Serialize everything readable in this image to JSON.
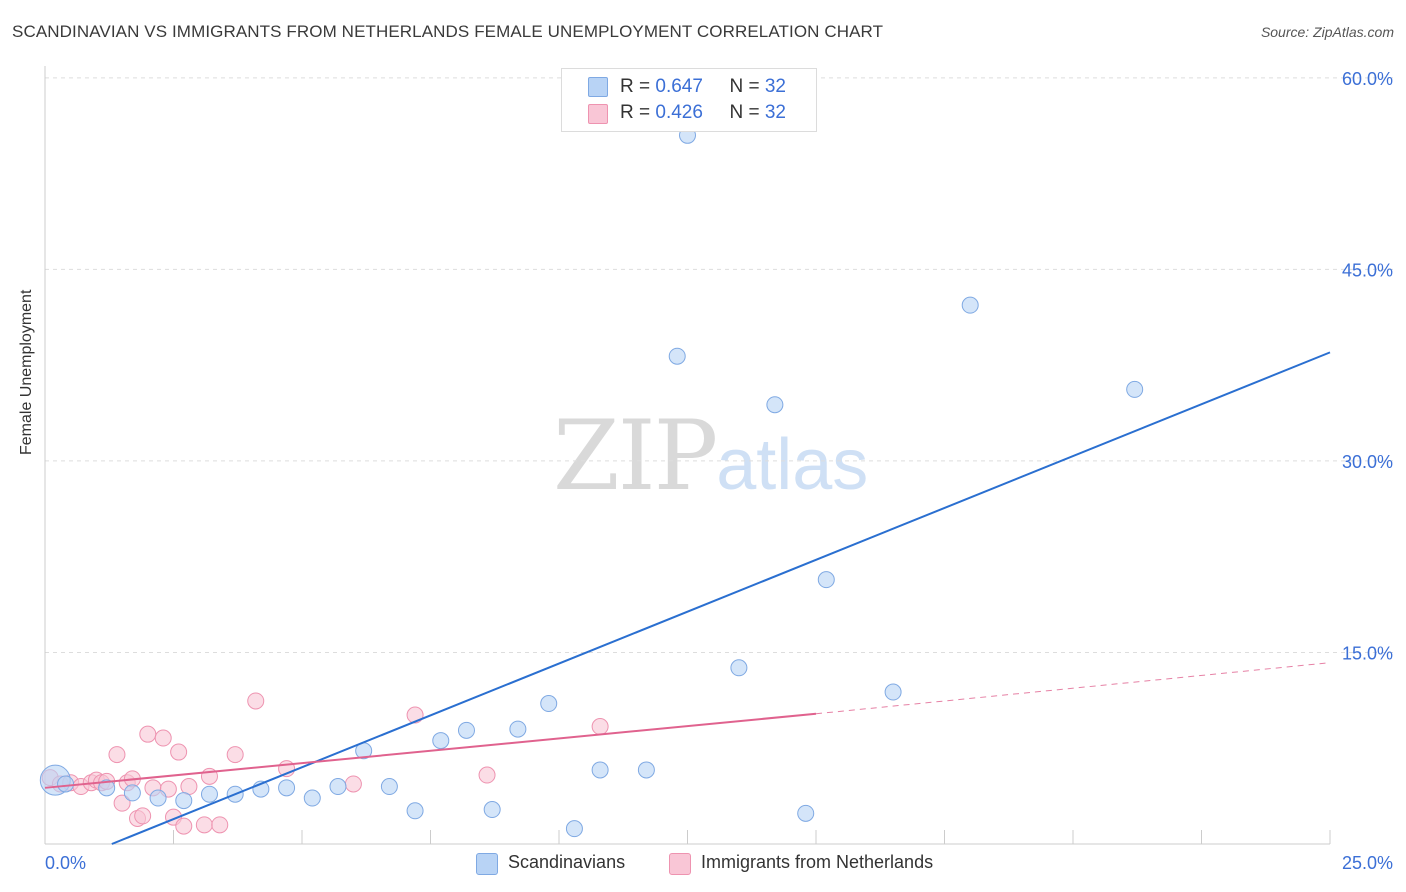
{
  "header": {
    "title": "SCANDINAVIAN VS IMMIGRANTS FROM NETHERLANDS FEMALE UNEMPLOYMENT CORRELATION CHART",
    "source": "Source: ZipAtlas.com"
  },
  "watermark": {
    "zip": "ZIP",
    "atlas": "atlas"
  },
  "legend": {
    "series1": {
      "r_label": "R = ",
      "r_value": "0.647",
      "n_label": "N = ",
      "n_value": "32"
    },
    "series2": {
      "r_label": "R = ",
      "r_value": "0.426",
      "n_label": "N = ",
      "n_value": "32"
    }
  },
  "colors": {
    "blue_fill": "#b8d3f5",
    "blue_stroke": "#7fa9e3",
    "blue_line": "#2a6fd0",
    "pink_fill": "#f9c6d6",
    "pink_stroke": "#ee93b0",
    "pink_line": "#e0628e",
    "tick_text": "#3b6fd6",
    "grid": "#dddddd"
  },
  "chart_data": {
    "type": "scatter",
    "title": "SCANDINAVIAN VS IMMIGRANTS FROM NETHERLANDS FEMALE UNEMPLOYMENT CORRELATION CHART",
    "xlabel": "",
    "ylabel": "Female Unemployment",
    "xlim": [
      0,
      25
    ],
    "ylim": [
      0,
      62
    ],
    "x_tick_labels": [
      "0.0%",
      "25.0%"
    ],
    "y_ticks": [
      15,
      30,
      45,
      60
    ],
    "y_tick_labels": [
      "15.0%",
      "30.0%",
      "45.0%",
      "60.0%"
    ],
    "series": [
      {
        "name": "Scandinavians",
        "color": "blue",
        "points": [
          [
            0.2,
            5.0
          ],
          [
            1.2,
            4.4
          ],
          [
            1.7,
            4.0
          ],
          [
            2.2,
            3.6
          ],
          [
            2.7,
            3.4
          ],
          [
            3.2,
            3.9
          ],
          [
            3.7,
            3.9
          ],
          [
            4.2,
            4.3
          ],
          [
            4.7,
            4.4
          ],
          [
            5.2,
            3.6
          ],
          [
            5.7,
            4.5
          ],
          [
            6.2,
            7.3
          ],
          [
            6.7,
            4.5
          ],
          [
            7.2,
            2.6
          ],
          [
            7.7,
            8.1
          ],
          [
            8.2,
            8.9
          ],
          [
            8.7,
            2.7
          ],
          [
            9.2,
            9.0
          ],
          [
            9.8,
            11.0
          ],
          [
            10.3,
            1.2
          ],
          [
            10.8,
            5.8
          ],
          [
            11.7,
            5.8
          ],
          [
            12.3,
            38.2
          ],
          [
            12.5,
            55.5
          ],
          [
            13.5,
            13.8
          ],
          [
            14.2,
            34.4
          ],
          [
            14.8,
            2.4
          ],
          [
            15.2,
            20.7
          ],
          [
            16.5,
            11.9
          ],
          [
            18.0,
            42.2
          ],
          [
            21.2,
            35.6
          ],
          [
            0.4,
            4.7
          ]
        ],
        "trend": {
          "x": [
            1.3,
            25.0
          ],
          "y": [
            0.0,
            38.5
          ]
        }
      },
      {
        "name": "Immigrants from Netherlands",
        "color": "pink",
        "points": [
          [
            0.1,
            5.2
          ],
          [
            0.3,
            4.7
          ],
          [
            0.5,
            4.8
          ],
          [
            0.7,
            4.5
          ],
          [
            0.9,
            4.8
          ],
          [
            1.0,
            5.0
          ],
          [
            1.1,
            4.8
          ],
          [
            1.2,
            4.9
          ],
          [
            1.4,
            7.0
          ],
          [
            1.5,
            3.2
          ],
          [
            1.6,
            4.8
          ],
          [
            1.7,
            5.1
          ],
          [
            1.8,
            2.0
          ],
          [
            1.9,
            2.2
          ],
          [
            2.0,
            8.6
          ],
          [
            2.1,
            4.4
          ],
          [
            2.3,
            8.3
          ],
          [
            2.4,
            4.3
          ],
          [
            2.5,
            2.1
          ],
          [
            2.6,
            7.2
          ],
          [
            2.7,
            1.4
          ],
          [
            2.8,
            4.5
          ],
          [
            3.1,
            1.5
          ],
          [
            3.2,
            5.3
          ],
          [
            3.7,
            7.0
          ],
          [
            4.1,
            11.2
          ],
          [
            4.7,
            5.9
          ],
          [
            6.0,
            4.7
          ],
          [
            7.2,
            10.1
          ],
          [
            8.6,
            5.4
          ],
          [
            10.8,
            9.2
          ],
          [
            3.4,
            1.5
          ]
        ],
        "trend": {
          "x": [
            0.0,
            15.0
          ],
          "y": [
            4.4,
            10.2
          ]
        },
        "trend_dashed": {
          "x": [
            15.0,
            25.0
          ],
          "y": [
            10.2,
            14.2
          ]
        }
      }
    ],
    "legend_labels": [
      "Scandinavians",
      "Immigrants from Netherlands"
    ]
  }
}
